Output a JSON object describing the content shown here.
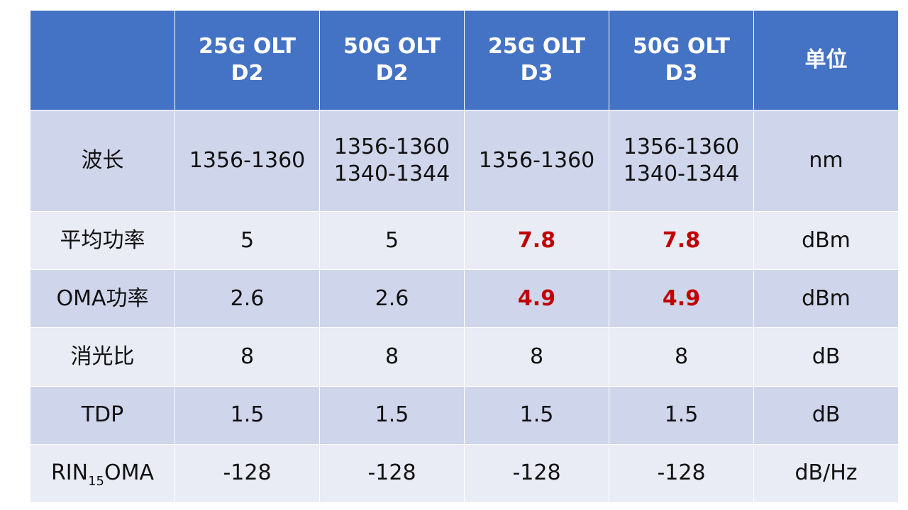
{
  "table": {
    "headers": [
      {
        "lines": [
          ""
        ]
      },
      {
        "lines": [
          "25G OLT",
          "D2"
        ]
      },
      {
        "lines": [
          "50G OLT",
          "D2"
        ]
      },
      {
        "lines": [
          "25G OLT",
          "D3"
        ]
      },
      {
        "lines": [
          "50G OLT",
          "D3"
        ]
      },
      {
        "lines": [
          "单位"
        ]
      }
    ],
    "rows": [
      {
        "label": "波长",
        "cells": [
          [
            "1356-1360"
          ],
          [
            "1356-1360",
            "1340-1344"
          ],
          [
            "1356-1360"
          ],
          [
            "1356-1360",
            "1340-1344"
          ]
        ],
        "unit": "nm"
      },
      {
        "label": "平均功率",
        "cells": [
          [
            "5"
          ],
          [
            "5"
          ],
          [
            "7.8"
          ],
          [
            "7.8"
          ]
        ],
        "highlighted": [
          false,
          false,
          true,
          true
        ],
        "unit": "dBm"
      },
      {
        "label": "OMA功率",
        "cells": [
          [
            "2.6"
          ],
          [
            "2.6"
          ],
          [
            "4.9"
          ],
          [
            "4.9"
          ]
        ],
        "highlighted": [
          false,
          false,
          true,
          true
        ],
        "unit": "dBm"
      },
      {
        "label": "消光比",
        "cells": [
          [
            "8"
          ],
          [
            "8"
          ],
          [
            "8"
          ],
          [
            "8"
          ]
        ],
        "unit": "dB"
      },
      {
        "label": "TDP",
        "cells": [
          [
            "1.5"
          ],
          [
            "1.5"
          ],
          [
            "1.5"
          ],
          [
            "1.5"
          ]
        ],
        "unit": "dB"
      },
      {
        "label_prefix": "RIN",
        "label_sub": "15",
        "label_suffix": "OMA",
        "cells": [
          [
            "-128"
          ],
          [
            "-128"
          ],
          [
            "-128"
          ],
          [
            "-128"
          ]
        ],
        "unit": "dB/Hz"
      }
    ]
  },
  "colors": {
    "header_bg": "#4472c4",
    "row_dark": "#cfd5ea",
    "row_light": "#e9ebf5",
    "highlight": "#c00000"
  }
}
